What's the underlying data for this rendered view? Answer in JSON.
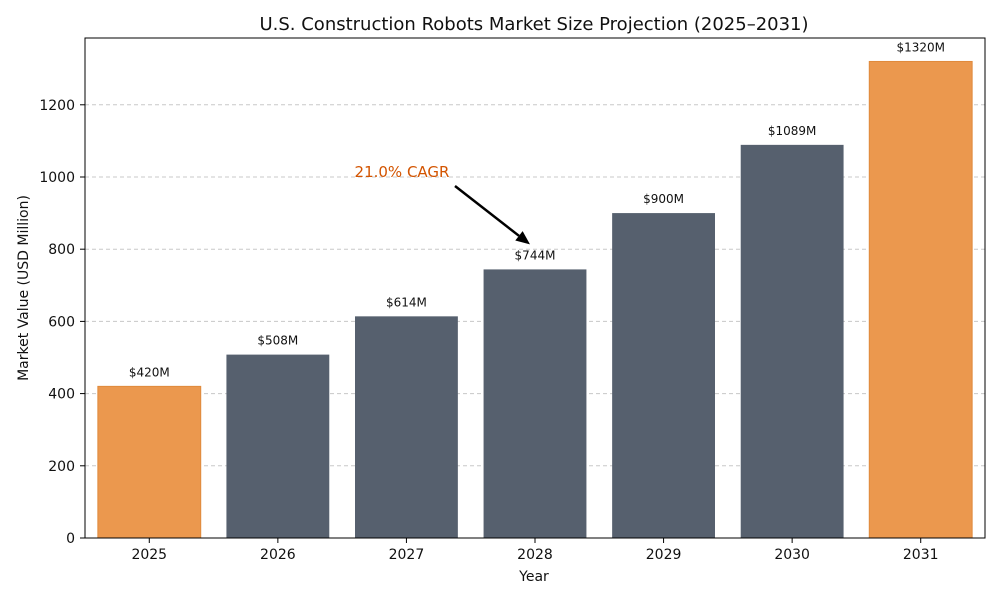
{
  "chart_data": {
    "type": "bar",
    "title": "U.S. Construction Robots Market Size Projection (2025–2031)",
    "xlabel": "Year",
    "ylabel": "Market Value (USD Million)",
    "categories": [
      "2025",
      "2026",
      "2027",
      "2028",
      "2029",
      "2030",
      "2031"
    ],
    "values": [
      420,
      508,
      614,
      744,
      900,
      1089,
      1320
    ],
    "data_labels": [
      "$420M",
      "$508M",
      "$614M",
      "$744M",
      "$900M",
      "$1089M",
      "$1320M"
    ],
    "highlighted": [
      "2025",
      "2031"
    ],
    "ylim": [
      0,
      1385
    ],
    "yticks": [
      0,
      200,
      400,
      600,
      800,
      1000,
      1200
    ],
    "grid": "y-dashed",
    "colors": {
      "default": "#56606e",
      "highlight": "#eb984e",
      "annotation": "#d35400",
      "grid": "#c8c8c8",
      "axis": "#000000"
    },
    "annotation": {
      "text": "21.0% CAGR",
      "arrow_target": "2028"
    }
  }
}
